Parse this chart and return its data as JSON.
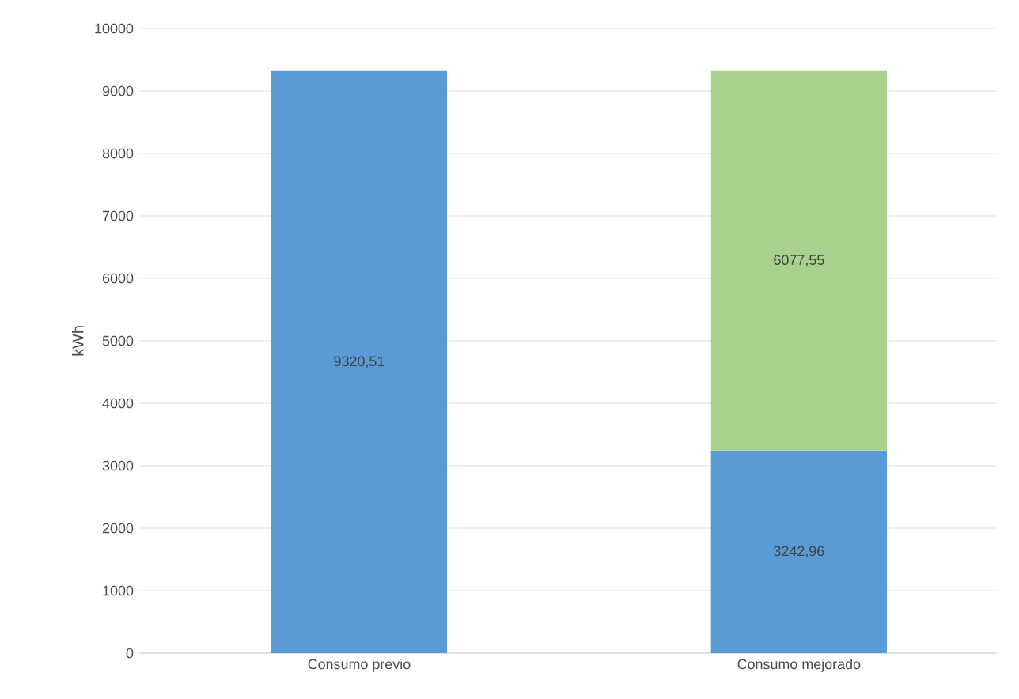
{
  "chart_data": {
    "type": "bar",
    "stacked": true,
    "ylabel": "kWh",
    "categories": [
      "Consumo previo",
      "Consumo mejorado"
    ],
    "series": [
      {
        "color": "#5b9bd5",
        "values": [
          9320.51,
          3242.96
        ],
        "value_labels": [
          "9320,51",
          "3242,96"
        ]
      },
      {
        "color": "#a9d18e",
        "values": [
          null,
          6077.55
        ],
        "value_labels": [
          null,
          "6077,55"
        ]
      }
    ],
    "ylim": [
      0,
      10000
    ],
    "yticks": [
      0,
      1000,
      2000,
      3000,
      4000,
      5000,
      6000,
      7000,
      8000,
      9000,
      10000
    ],
    "grid": "y"
  }
}
